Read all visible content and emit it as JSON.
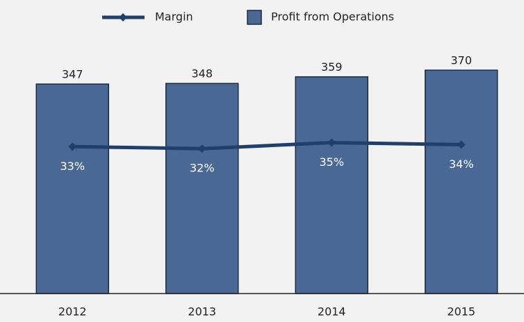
{
  "chart_data": {
    "type": "bar",
    "categories": [
      "2012",
      "2013",
      "2014",
      "2015"
    ],
    "series": [
      {
        "name": "Profit from Operations",
        "type": "bar",
        "color": "#4a6896",
        "values": [
          347,
          348,
          359,
          370
        ]
      },
      {
        "name": "Margin",
        "type": "line",
        "axis": "y2",
        "color": "#1f3f6e",
        "values": [
          33,
          32,
          35,
          34
        ],
        "value_labels": [
          "33%",
          "32%",
          "35%",
          "34%"
        ]
      }
    ],
    "ylim": [
      0,
      400
    ],
    "y2lim": [
      -40,
      80
    ],
    "grid": false
  }
}
